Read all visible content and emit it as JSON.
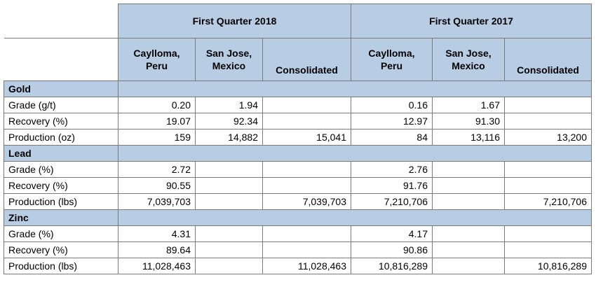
{
  "header": {
    "group_2018": "First Quarter 2018",
    "group_2017": "First Quarter 2017",
    "columns": [
      {
        "line1": "Caylloma,",
        "line2": "Peru"
      },
      {
        "line1": "San Jose,",
        "line2": "Mexico"
      },
      {
        "line1": "Consolidated",
        "line2": ""
      },
      {
        "line1": "Caylloma,",
        "line2": "Peru"
      },
      {
        "line1": "San Jose,",
        "line2": "Mexico"
      },
      {
        "line1": "Consolidated",
        "line2": ""
      }
    ]
  },
  "sections": [
    {
      "name": "Gold",
      "rows": [
        {
          "label": "Grade (g/t)",
          "values": [
            "0.20",
            "1.94",
            "",
            "0.16",
            "1.67",
            ""
          ]
        },
        {
          "label": "Recovery (%)",
          "values": [
            "19.07",
            "92.34",
            "",
            "12.97",
            "91.30",
            ""
          ]
        },
        {
          "label": "Production (oz)",
          "values": [
            "159",
            "14,882",
            "15,041",
            "84",
            "13,116",
            "13,200"
          ]
        }
      ]
    },
    {
      "name": "Lead",
      "rows": [
        {
          "label": "Grade (%)",
          "values": [
            "2.72",
            "",
            "",
            "2.76",
            "",
            ""
          ]
        },
        {
          "label": "Recovery (%)",
          "values": [
            "90.55",
            "",
            "",
            "91.76",
            "",
            ""
          ]
        },
        {
          "label": "Production (lbs)",
          "values": [
            "7,039,703",
            "",
            "7,039,703",
            "7,210,706",
            "",
            "7,210,706"
          ]
        }
      ]
    },
    {
      "name": "Zinc",
      "rows": [
        {
          "label": "Grade (%)",
          "values": [
            "4.31",
            "",
            "",
            "4.17",
            "",
            ""
          ]
        },
        {
          "label": "Recovery (%)",
          "values": [
            "89.64",
            "",
            "",
            "90.86",
            "",
            ""
          ]
        },
        {
          "label": "Production (lbs)",
          "values": [
            "11,028,463",
            "",
            "11,028,463",
            "10,816,289",
            "",
            "10,816,289"
          ]
        }
      ]
    }
  ]
}
